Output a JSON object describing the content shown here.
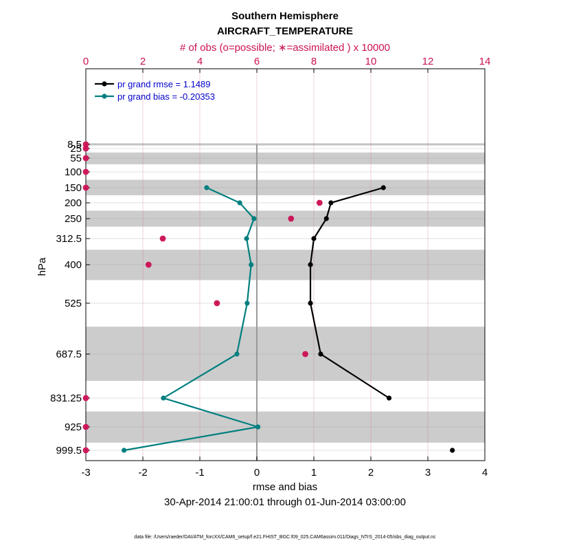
{
  "chart_data": {
    "type": "line",
    "title": "Southern Hemisphere",
    "subtitle": "AIRCRAFT_TEMPERATURE",
    "top_axis_label": "# of obs (o=possible; ∗=assimilated ) x 10000",
    "xlabel": "rmse and bias",
    "ylabel": "hPa",
    "date_range": "30-Apr-2014 21:00:01 through 01-Jun-2014 03:00:00",
    "footer": "data file: /Users/raeder/DAI/ATM_forcXX/CAM6_setup/f.e21.FHIST_BGC.f09_025.CAM6assim.011/Diags_NTrS_2014-05/obs_diag_output.nc",
    "xlim": [
      -3,
      4
    ],
    "xticks": [
      "-3",
      "-2",
      "-1",
      "0",
      "1",
      "2",
      "3",
      "4"
    ],
    "top_xlim": [
      0,
      14
    ],
    "top_xticks": [
      "0",
      "2",
      "4",
      "6",
      "8",
      "10",
      "12",
      "14"
    ],
    "levels": [
      8.5,
      25,
      55,
      100,
      150,
      200,
      250,
      312.5,
      400,
      525,
      687.5,
      831.25,
      925,
      999.5
    ],
    "level_labels": [
      "8.5",
      "25",
      "55",
      "100",
      "150",
      "200",
      "250",
      "312.5",
      "400",
      "525",
      "687.5",
      "831.25",
      "925",
      "999.5"
    ],
    "shaded_bands_hPa": [
      [
        4,
        13
      ],
      [
        37.5,
        75
      ],
      [
        125,
        175
      ],
      [
        225,
        275
      ],
      [
        350,
        450
      ],
      [
        600,
        775
      ],
      [
        875,
        975
      ]
    ],
    "grid": true,
    "legend_position": "top-left",
    "series": [
      {
        "name": "pr grand rmse = 1.1489",
        "color": "#000000",
        "levels": [
          150,
          200,
          250,
          312.5,
          400,
          525,
          687.5,
          831.25
        ],
        "values": [
          2.22,
          1.3,
          1.22,
          1.0,
          0.94,
          0.94,
          1.12,
          2.32
        ]
      },
      {
        "name": "pr grand rmse = 1.1489",
        "color": "#000000",
        "isolated": true,
        "levels": [
          999.5
        ],
        "values": [
          3.43
        ]
      },
      {
        "name": "pr grand bias = -0.20353",
        "color": "#007f7f",
        "levels": [
          150,
          200,
          250,
          312.5,
          400,
          525,
          687.5,
          831.25,
          925,
          999.5
        ],
        "values": [
          -0.88,
          -0.3,
          -0.05,
          -0.18,
          -0.1,
          -0.17,
          -0.35,
          -1.64,
          0.02,
          -2.33
        ]
      }
    ],
    "obs_possible": {
      "color": "#cc1155",
      "levels": [
        8.5,
        25,
        55,
        100,
        150,
        200,
        250,
        312.5,
        400,
        525,
        687.5,
        831.25,
        925,
        999.5
      ],
      "values": [
        0,
        0,
        0,
        0,
        0,
        8.2,
        7.2,
        2.7,
        2.2,
        4.6,
        7.7,
        0,
        0,
        0
      ]
    },
    "obs_assimilated": {
      "color": "#cc1155",
      "levels": [
        8.5,
        25,
        55,
        100,
        150,
        200,
        250,
        312.5,
        400,
        525,
        687.5,
        831.25,
        925,
        999.5
      ],
      "values": [
        0,
        0,
        0,
        0,
        0,
        8.2,
        7.2,
        2.7,
        2.2,
        4.6,
        7.7,
        0,
        0,
        0
      ]
    }
  }
}
